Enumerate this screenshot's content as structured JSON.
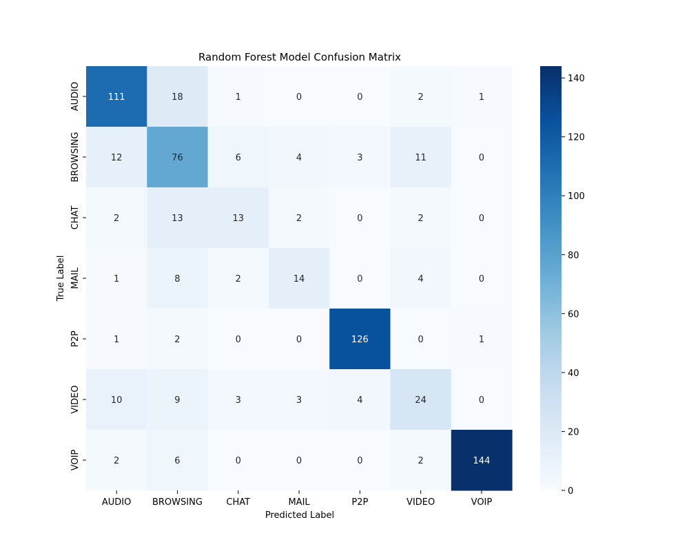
{
  "chart_data": {
    "type": "heatmap",
    "title": "Random Forest Model Confusion Matrix",
    "xlabel": "Predicted Label",
    "ylabel": "True Label",
    "x_categories": [
      "AUDIO",
      "BROWSING",
      "CHAT",
      "MAIL",
      "P2P",
      "VIDEO",
      "VOIP"
    ],
    "y_categories": [
      "AUDIO",
      "BROWSING",
      "CHAT",
      "MAIL",
      "P2P",
      "VIDEO",
      "VOIP"
    ],
    "values": [
      [
        111,
        18,
        1,
        0,
        0,
        2,
        1
      ],
      [
        12,
        76,
        6,
        4,
        3,
        11,
        0
      ],
      [
        2,
        13,
        13,
        2,
        0,
        2,
        0
      ],
      [
        1,
        8,
        2,
        14,
        0,
        4,
        0
      ],
      [
        1,
        2,
        0,
        0,
        126,
        0,
        1
      ],
      [
        10,
        9,
        3,
        3,
        4,
        24,
        0
      ],
      [
        2,
        6,
        0,
        0,
        0,
        2,
        144
      ]
    ],
    "colormap": "Blues",
    "colorbar": {
      "range": [
        0,
        144
      ],
      "ticks": [
        0,
        20,
        40,
        60,
        80,
        100,
        120,
        140
      ],
      "position": "right"
    },
    "grid": false
  }
}
